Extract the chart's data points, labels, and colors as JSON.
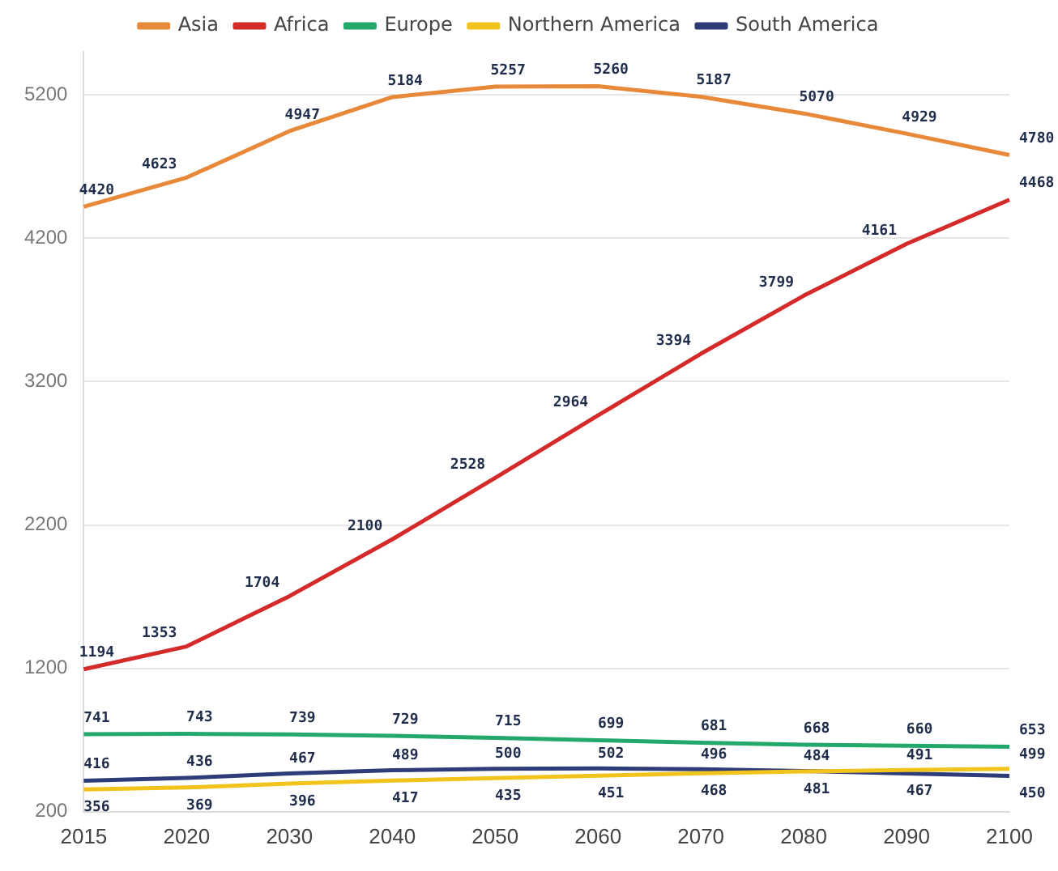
{
  "chart_data": {
    "type": "line",
    "categories": [
      "2015",
      "2020",
      "2030",
      "2040",
      "2050",
      "2060",
      "2070",
      "2080",
      "2090",
      "2100"
    ],
    "series": [
      {
        "name": "Asia",
        "color": "#e8893a",
        "values": [
          4420,
          4623,
          4947,
          5184,
          5257,
          5260,
          5187,
          5070,
          4929,
          4780
        ]
      },
      {
        "name": "Africa",
        "color": "#d42a2a",
        "values": [
          1194,
          1353,
          1704,
          2100,
          2528,
          2964,
          3394,
          3799,
          4161,
          4468
        ]
      },
      {
        "name": "Europe",
        "color": "#22a86a",
        "values": [
          741,
          743,
          739,
          729,
          715,
          699,
          681,
          668,
          660,
          653
        ]
      },
      {
        "name": "Northern America",
        "color": "#f2c31a",
        "values": [
          356,
          369,
          396,
          417,
          435,
          451,
          468,
          481,
          491,
          499
        ]
      },
      {
        "name": "South America",
        "color": "#2e3d7a",
        "values": [
          416,
          436,
          467,
          489,
          500,
          502,
          496,
          484,
          467,
          450
        ]
      }
    ],
    "ylim": [
      200,
      5500
    ],
    "yticks": [
      200,
      1200,
      2200,
      3200,
      4200,
      5200
    ],
    "grid": "y",
    "legend": "top",
    "marker": "none",
    "line_style": "solid",
    "data_labels": true
  }
}
